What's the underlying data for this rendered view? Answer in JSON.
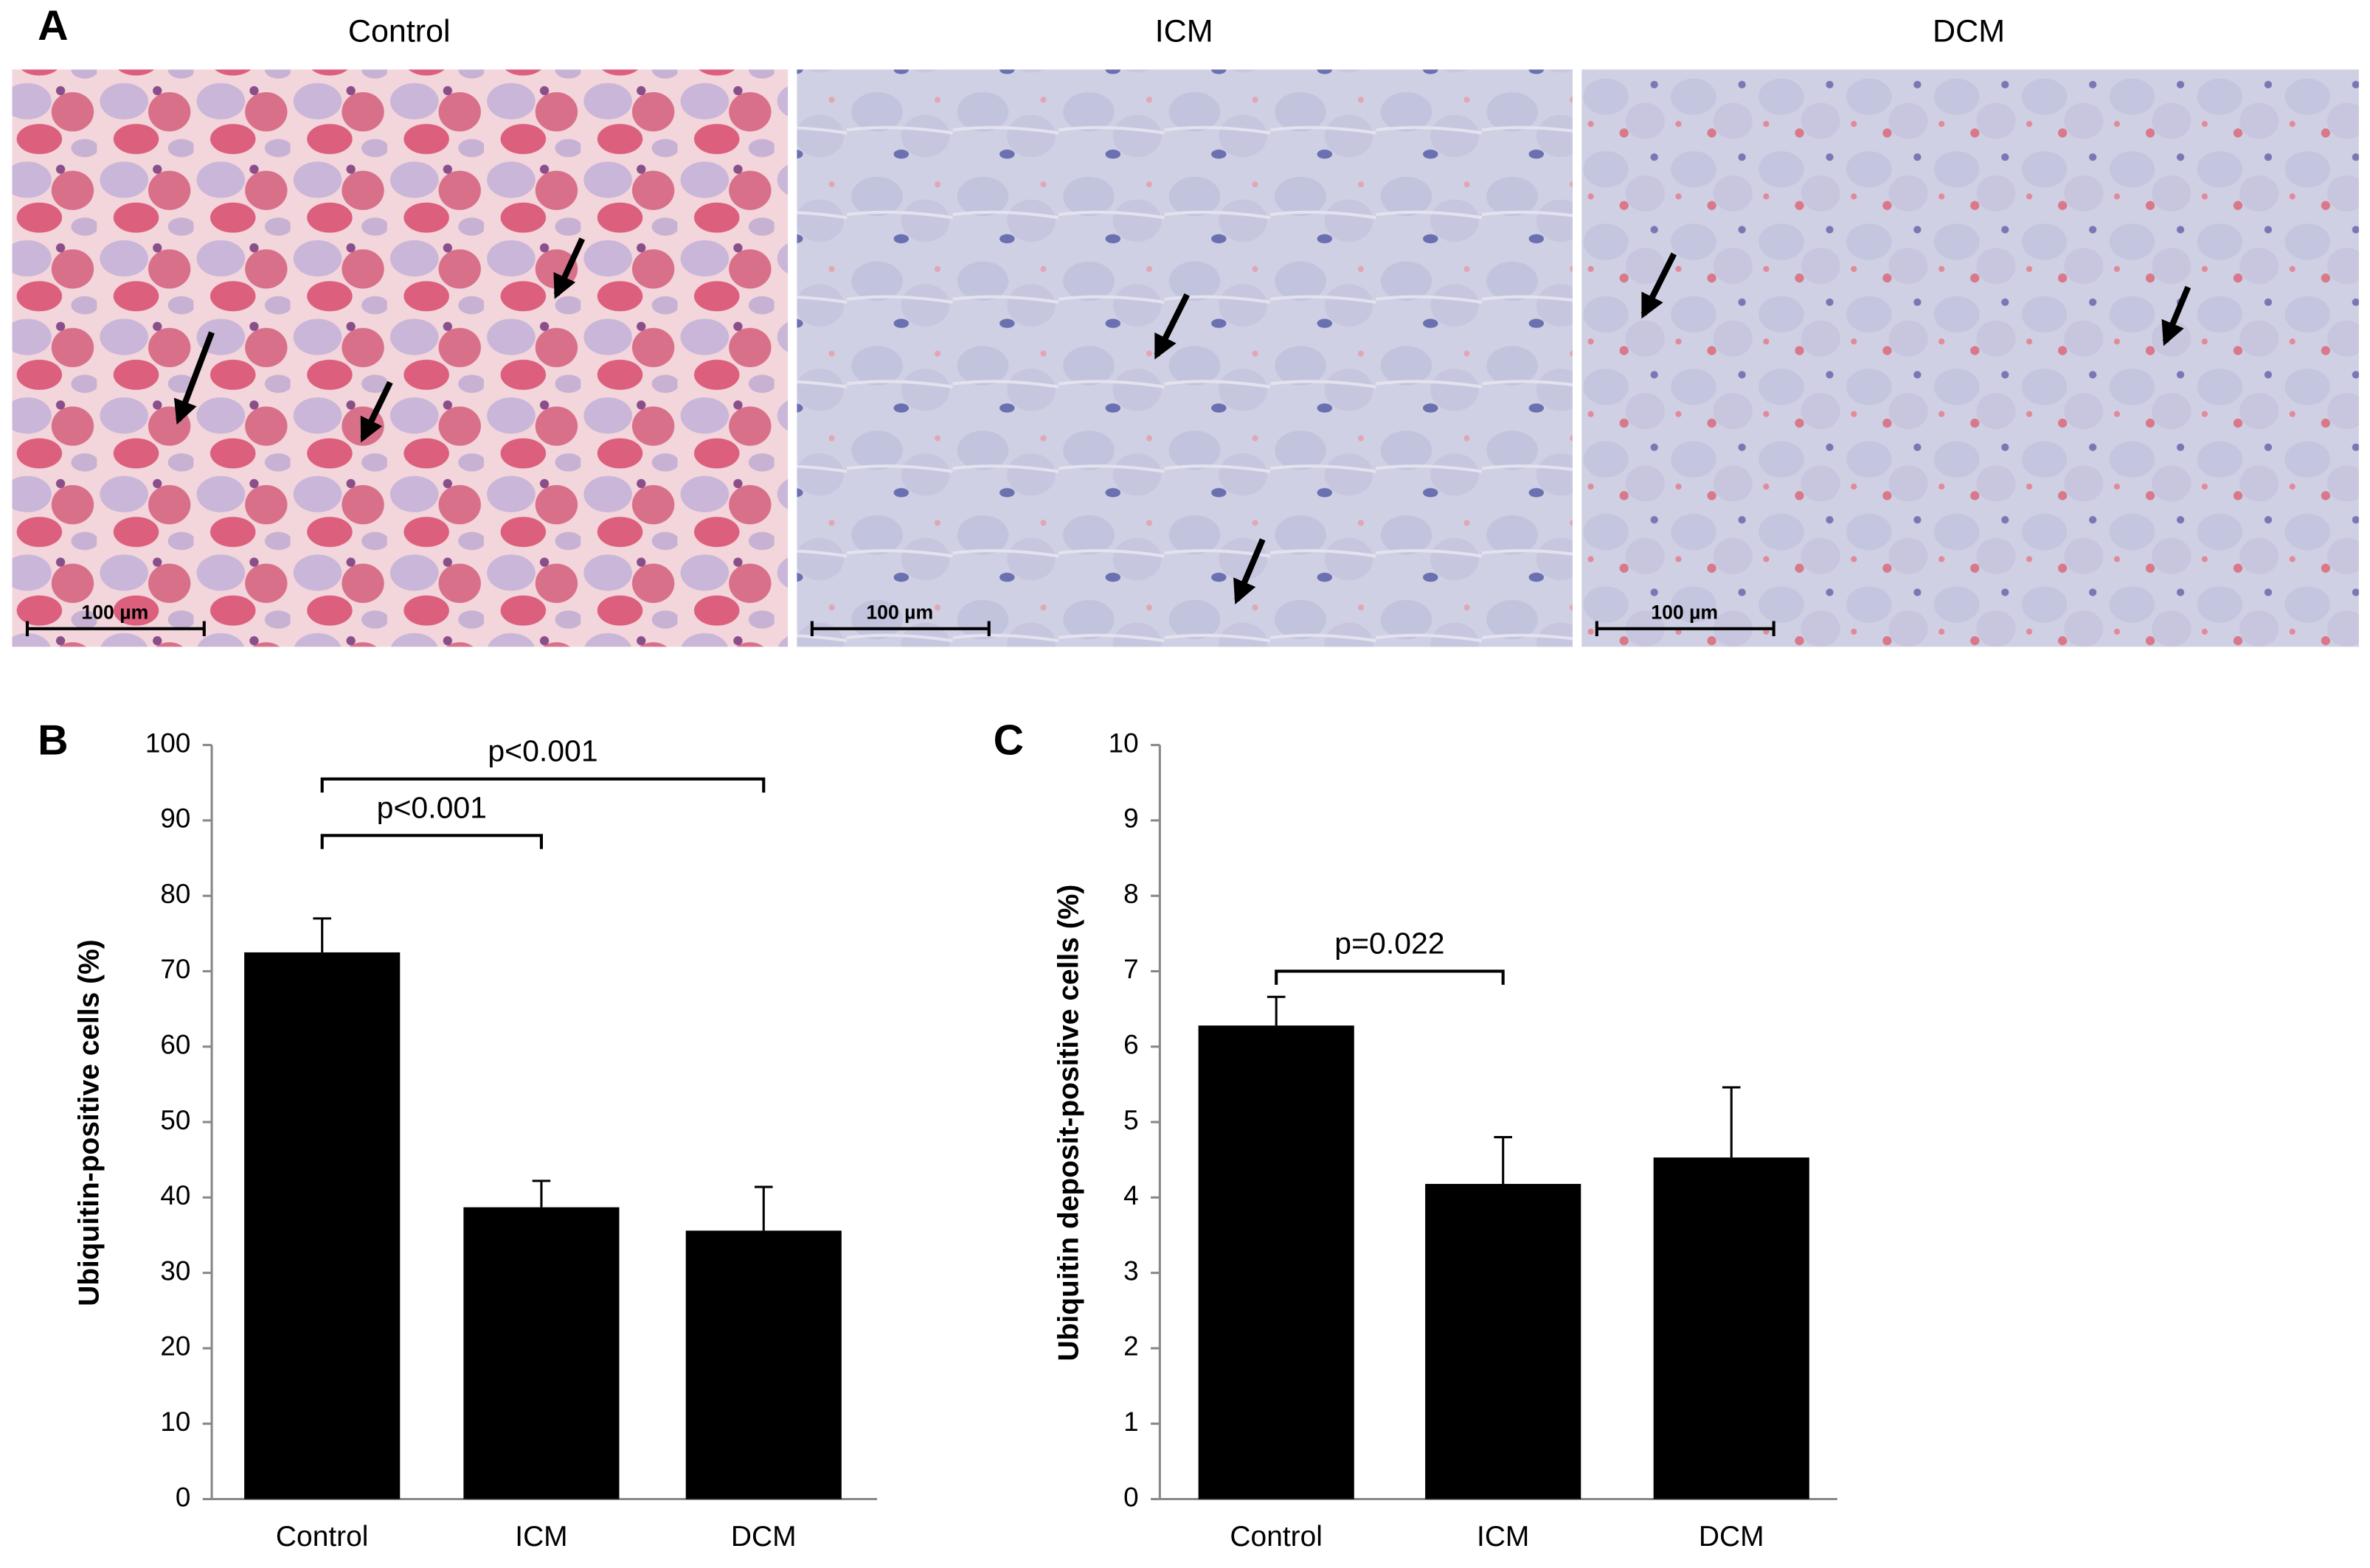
{
  "panel_a": {
    "label": "A",
    "images": [
      {
        "title": "Control",
        "scale_bar": "100 µm"
      },
      {
        "title": "ICM",
        "scale_bar": "100 µm"
      },
      {
        "title": "DCM",
        "scale_bar": "100 µm"
      }
    ]
  },
  "chart_data": [
    {
      "type": "bar",
      "label": "B",
      "y_label": "Ubiquitin-positive cells (%)",
      "categories": [
        "Control",
        "ICM",
        "DCM"
      ],
      "values": [
        72.5,
        38.7,
        35.6
      ],
      "errors": [
        4.5,
        3.5,
        5.8
      ],
      "color": "#000000",
      "ylim": [
        0,
        100
      ],
      "yticks": [
        0,
        10,
        20,
        30,
        40,
        50,
        60,
        70,
        80,
        90,
        100
      ],
      "annotations": [
        {
          "text": "p<0.001",
          "between": [
            "Control",
            "ICM"
          ],
          "y": 88
        },
        {
          "text": "p<0.001",
          "between": [
            "Control",
            "DCM"
          ],
          "y": 95.5
        }
      ]
    },
    {
      "type": "bar",
      "label": "C",
      "y_label": "Ubiquitin deposit-positive cells (%)",
      "categories": [
        "Control",
        "ICM",
        "DCM"
      ],
      "values": [
        6.28,
        4.18,
        4.53
      ],
      "errors": [
        0.38,
        0.62,
        0.93
      ],
      "color": "#000000",
      "ylim": [
        0,
        10
      ],
      "yticks": [
        0,
        1,
        2,
        3,
        4,
        5,
        6,
        7,
        8,
        9,
        10
      ],
      "annotations": [
        {
          "text": "p=0.022",
          "between": [
            "Control",
            "ICM"
          ],
          "y": 7.0
        }
      ]
    }
  ]
}
